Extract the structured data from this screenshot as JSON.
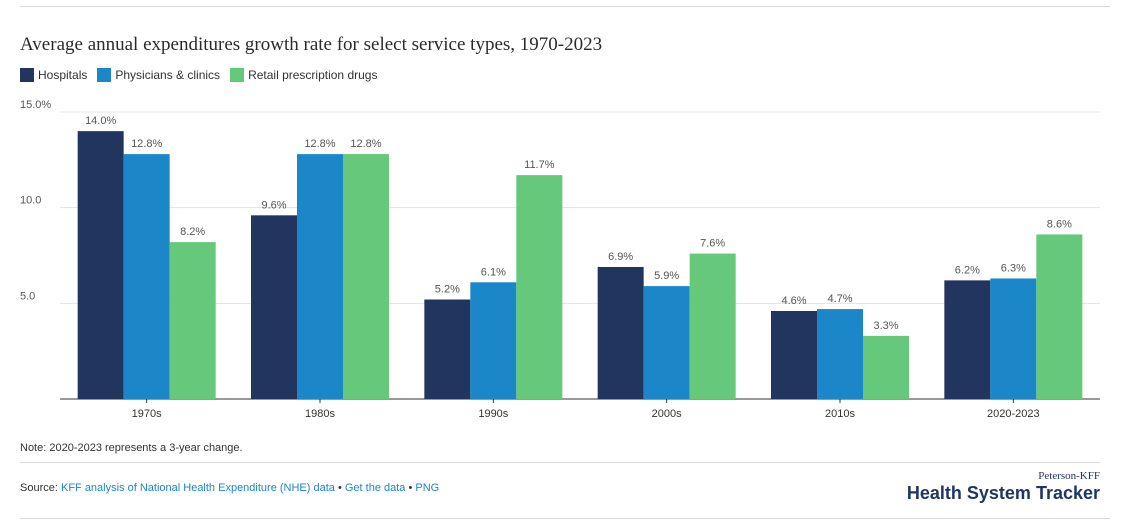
{
  "colors": {
    "hospitals": "#22355f",
    "physicians": "#1b87c9",
    "drugs": "#65c87b",
    "grid": "#e3e3e3",
    "axis": "#333333",
    "link": "#1b87c9",
    "brand": "#1f3565"
  },
  "note": "Note: 2020-2023 represents a 3-year change.",
  "source": {
    "label": "Source:",
    "link1": "KFF analysis of National Health Expenditure (NHE) data",
    "sep1": "•",
    "link2": "Get the data",
    "sep2": "•",
    "link3": "PNG"
  },
  "brand": {
    "small": "Peterson-KFF",
    "big": "Health System Tracker"
  },
  "chart_data": {
    "type": "bar",
    "title": "Average annual expenditures growth rate for select service types, 1970-2023",
    "xlabel": "",
    "ylabel": "",
    "categories": [
      "1970s",
      "1980s",
      "1990s",
      "2000s",
      "2010s",
      "2020-2023"
    ],
    "series": [
      {
        "name": "Hospitals",
        "color": "#22355f",
        "values": [
          14.0,
          9.6,
          5.2,
          6.9,
          4.6,
          6.2
        ],
        "labels": [
          "14.0%",
          "9.6%",
          "5.2%",
          "6.9%",
          "4.6%",
          "6.2%"
        ]
      },
      {
        "name": "Physicians & clinics",
        "color": "#1b87c9",
        "values": [
          12.8,
          12.8,
          6.1,
          5.9,
          4.7,
          6.3
        ],
        "labels": [
          "12.8%",
          "12.8%",
          "6.1%",
          "5.9%",
          "4.7%",
          "6.3%"
        ]
      },
      {
        "name": "Retail prescription drugs",
        "color": "#65c87b",
        "values": [
          8.2,
          12.8,
          11.7,
          7.6,
          3.3,
          8.6
        ],
        "labels": [
          "8.2%",
          "12.8%",
          "11.7%",
          "7.6%",
          "3.3%",
          "8.6%"
        ]
      }
    ],
    "ylim": [
      0,
      15
    ],
    "yticks": [
      5,
      10,
      15
    ],
    "ytick_labels": [
      "5.0",
      "10.0",
      "15.0%"
    ],
    "grid": true,
    "legend": "top-left"
  }
}
